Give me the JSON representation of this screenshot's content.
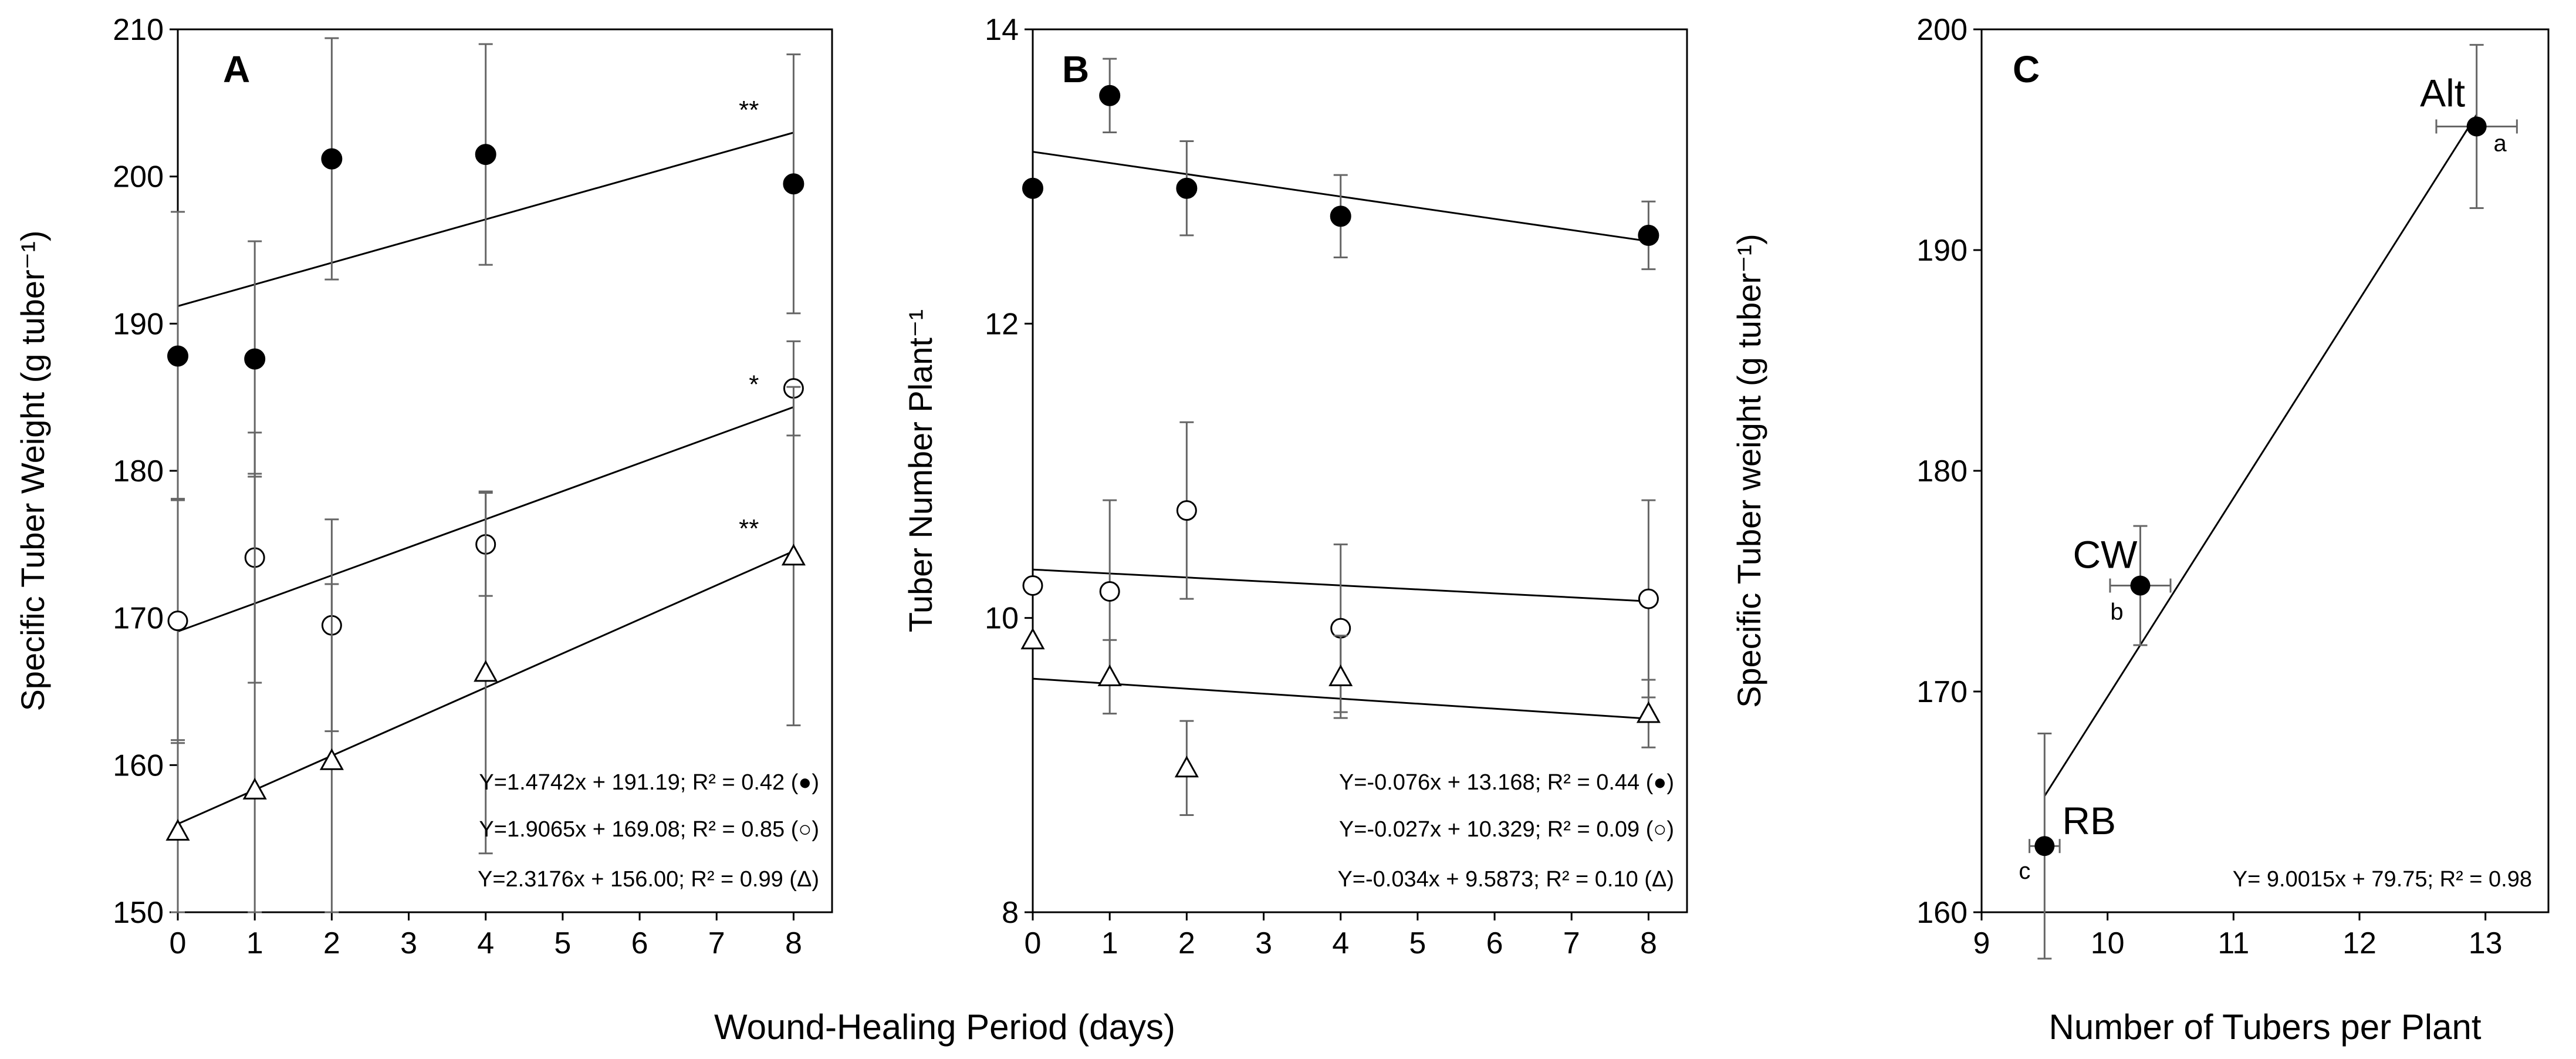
{
  "chart_data": [
    {
      "panel": "A",
      "type": "scatter",
      "ylabel": "Specific Tuber Weight (g tuber⁻¹)",
      "xlim": [
        0,
        8.5
      ],
      "ylim": [
        150,
        210
      ],
      "xticks": [
        0,
        1,
        2,
        3,
        4,
        5,
        6,
        7,
        8
      ],
      "yticks": [
        150,
        160,
        170,
        180,
        190,
        200,
        210
      ],
      "series": [
        {
          "marker": "filled-circle",
          "x": [
            0,
            1,
            2,
            4,
            8
          ],
          "y": [
            187.8,
            187.6,
            201.2,
            201.5,
            199.5
          ],
          "err": [
            9.8,
            8.0,
            8.2,
            7.5,
            8.8
          ],
          "fit": {
            "slope": 1.4742,
            "intercept": 191.19
          },
          "sig": "**",
          "equation": "Y=1.4742x + 191.19; R² = 0.42 (●)"
        },
        {
          "marker": "open-circle",
          "x": [
            0,
            1,
            2,
            4,
            8
          ],
          "y": [
            169.8,
            174.1,
            169.5,
            175.0,
            185.6
          ],
          "err": [
            8.3,
            8.5,
            7.2,
            3.5,
            3.2
          ],
          "fit": {
            "slope": 1.9065,
            "intercept": 169.08
          },
          "sig": "*",
          "equation": "Y=1.9065x + 169.08; R² = 0.85 (○)"
        },
        {
          "marker": "open-triangle",
          "x": [
            0,
            1,
            2,
            4,
            8
          ],
          "y": [
            155.5,
            158.3,
            160.3,
            166.3,
            174.2
          ],
          "err": [
            6.2,
            21.5,
            12.0,
            12.3,
            11.5
          ],
          "fit": {
            "slope": 2.3176,
            "intercept": 156.0
          },
          "sig": "**",
          "equation": "Y=2.3176x + 156.00; R² = 0.99 (Δ)"
        }
      ]
    },
    {
      "panel": "B",
      "type": "scatter",
      "ylabel": "Tuber Number Plant⁻¹",
      "xlim": [
        0,
        8.5
      ],
      "ylim": [
        8,
        14
      ],
      "xticks": [
        0,
        1,
        2,
        3,
        4,
        5,
        6,
        7,
        8
      ],
      "yticks": [
        8,
        10,
        12,
        14
      ],
      "series": [
        {
          "marker": "filled-circle",
          "x": [
            0,
            1,
            2,
            4,
            8
          ],
          "y": [
            12.92,
            13.55,
            12.92,
            12.73,
            12.6
          ],
          "err": [
            0.0,
            0.25,
            0.32,
            0.28,
            0.23
          ],
          "fit": {
            "slope": -0.076,
            "intercept": 13.168
          },
          "equation": "Y=-0.076x + 13.168; R² = 0.44 (●)"
        },
        {
          "marker": "open-circle",
          "x": [
            0,
            1,
            2,
            4,
            8
          ],
          "y": [
            10.22,
            10.18,
            10.73,
            9.93,
            10.13
          ],
          "err": [
            0.0,
            0.62,
            0.6,
            0.57,
            0.67
          ],
          "fit": {
            "slope": -0.027,
            "intercept": 10.329
          },
          "equation": "Y=-0.027x + 10.329; R² = 0.09 (○)"
        },
        {
          "marker": "open-triangle",
          "x": [
            0,
            1,
            2,
            4,
            8
          ],
          "y": [
            9.85,
            9.6,
            8.98,
            9.6,
            9.35
          ],
          "err": [
            0.0,
            0.25,
            0.32,
            0.28,
            0.23
          ],
          "fit": {
            "slope": -0.034,
            "intercept": 9.5873
          },
          "equation": "Y=-0.034x + 9.5873; R² = 0.10 (Δ)"
        }
      ]
    },
    {
      "panel": "C",
      "type": "scatter",
      "xlabel": "Number of Tubers per Plant",
      "ylabel": "Specific Tuber weight (g tuber⁻¹)",
      "xlim": [
        9,
        13.5
      ],
      "ylim": [
        160,
        200
      ],
      "xticks": [
        9,
        10,
        11,
        12,
        13
      ],
      "yticks": [
        160,
        170,
        180,
        190,
        200
      ],
      "points": [
        {
          "label": "RB",
          "letter": "c",
          "x": 9.5,
          "y": 163.0,
          "xerr": 0.12,
          "yerr": 5.1
        },
        {
          "label": "CW",
          "letter": "b",
          "x": 10.26,
          "y": 174.8,
          "xerr": 0.24,
          "yerr": 2.7
        },
        {
          "label": "Alt",
          "letter": "a",
          "x": 12.93,
          "y": 195.6,
          "xerr": 0.32,
          "yerr": 3.7
        }
      ],
      "fit": {
        "slope": 9.0015,
        "intercept": 79.75,
        "x_range": [
          9.5,
          12.93
        ]
      },
      "equation": "Y= 9.0015x + 79.75; R² = 0.98"
    }
  ],
  "shared_xlabel": "Wound-Healing Period (days)"
}
